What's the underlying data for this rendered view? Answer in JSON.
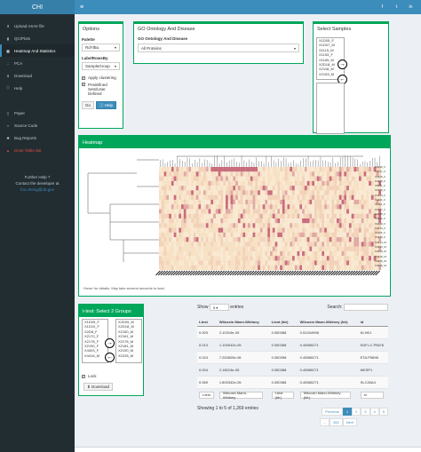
{
  "app": {
    "logo": "CHI"
  },
  "sidebar": {
    "items": [
      {
        "label": "Upload ASAV file",
        "icon": "upload-icon"
      },
      {
        "label": "QC/Plots",
        "icon": "bar-chart-icon"
      },
      {
        "label": "Heatmap And Statistics",
        "icon": "grid-icon",
        "active": true
      },
      {
        "label": "PCA",
        "icon": "scatter-icon"
      },
      {
        "label": "Download",
        "icon": "download-icon"
      },
      {
        "label": "Help",
        "icon": "info-icon"
      }
    ],
    "links": [
      {
        "label": "Paper",
        "icon": "file-icon"
      },
      {
        "label": "Source Code",
        "icon": "code-icon"
      },
      {
        "label": "Bug Reports",
        "icon": "bug-icon"
      },
      {
        "label": "Dose-Table dat",
        "icon": "warning-icon",
        "red": true
      }
    ],
    "help": {
      "line1": "Further Help ?",
      "line2": "Contact the developer at",
      "email": "foo.cheng@ob.gov"
    }
  },
  "options": {
    "title": "Options",
    "palette_label": "Palette",
    "palette_value": "RdYlBu",
    "labelrows_label": "LabelRowsBy",
    "labelrows_value": "SampleGroup",
    "apply_clustering": "Apply clustering",
    "predefined": "Predefined",
    "predefined2": "Sets/User Defined",
    "go_label": "Go",
    "help_label": "Help"
  },
  "go_ontology": {
    "title": "GO Ontology And Disease",
    "sub_label": "GO Ontology And Disease",
    "value": "All Proteins"
  },
  "samples": {
    "title": "Select Samples",
    "items": [
      "X1D05_F",
      "X1D07_M",
      "X1115_M",
      "X1153_F",
      "X1169_M",
      "X2D18_M",
      "X2118_M",
      "X2153_M"
    ]
  },
  "heatmap": {
    "title": "Heatmap",
    "row_labels": [
      "X4416_F",
      "X4417_F",
      "X3416_F",
      "X4418_F",
      "X5011_F",
      "X2308_F",
      "X4414_F",
      "X4421_F",
      "X1110_F",
      "X4417_F",
      "X2428_F",
      "X4422_F",
      "X4419_F",
      "X4414_F",
      "X2115_F",
      "X4448_F",
      "X4414_M",
      "X4433_M",
      "X4418_M",
      "X4419_M",
      "X4425_M",
      "X4436_M"
    ],
    "hover_note": "Hover for details. May take several seconds to load."
  },
  "ttest": {
    "title": "t-test: Select 2 Groups",
    "left": [
      "X1D09_F",
      "X1D10_F",
      "X2D8_F",
      "X2170_F",
      "X2178_F",
      "X2190_F",
      "X4403_F",
      "X4416_M"
    ],
    "right": [
      "X2D09_M",
      "X2D18_M",
      "X2160_M",
      "X2161_M",
      "X2178_M",
      "X2181_M",
      "X2190_M",
      "X2228_M"
    ],
    "lock_label": "Lock",
    "download_label": "Download"
  },
  "table": {
    "show_label": "Show",
    "show_value": "5",
    "entries_label": "entries",
    "search_label": "Search:",
    "headers": [
      "t-test",
      "Wilcoxin Mann-Whitney",
      "t-test (fdr)",
      "Wilcoxin Mann-Whitney (fdr)",
      "id"
    ],
    "rows": [
      [
        "0.003",
        "2.10319e-05",
        "0.050388",
        "0.02434998",
        "KLHK1"
      ],
      [
        "0.013",
        "1.100042e-05",
        "0.050388",
        "0.45580271",
        "KDF.LC.P5676"
      ],
      [
        "0.024",
        "7.252609e-06",
        "0.050398",
        "0.45580271",
        "ETA.P5698"
      ],
      [
        "0.004",
        "2.18013e-05",
        "0.050388",
        "0.45580271",
        "MKSP1"
      ],
      [
        "0.069",
        "1.800342e-05",
        "0.050388",
        "0.45580271",
        "SLC26A4"
      ]
    ],
    "footer_headers": [
      "t-test",
      "Wilcoxin Mann-Whitney",
      "t-test (fdr)",
      "Wilcoxin Mann-Whitney (fdr)",
      "id"
    ],
    "info": "Showing 1 to 5 of 1,269 entries",
    "pager": [
      "Previous",
      "1",
      "2",
      "3",
      "4",
      "5"
    ],
    "pager2": [
      "...",
      "262",
      "Next"
    ]
  }
}
